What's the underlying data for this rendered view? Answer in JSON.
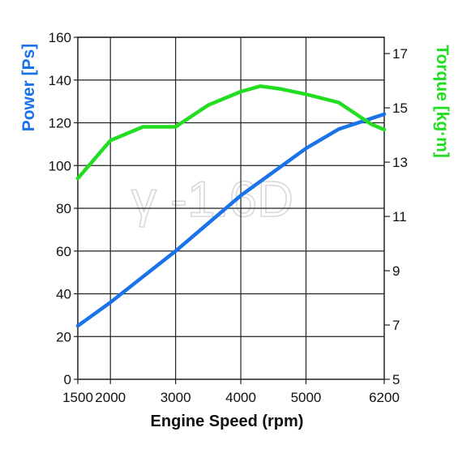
{
  "chart_data": {
    "type": "line",
    "title": "",
    "watermark": "γ -1.6D",
    "xlabel": "Engine Speed (rpm)",
    "xlim": [
      1500,
      6200
    ],
    "x_ticks": [
      1500,
      2000,
      3000,
      4000,
      5000,
      6200
    ],
    "x_grid": [
      2000,
      3000,
      4000,
      5000
    ],
    "grid": true,
    "legend": "none",
    "y_left": {
      "label_text": "Power",
      "label_unit": "[Ps]",
      "ylim": [
        0,
        160
      ],
      "ticks": [
        0,
        20,
        40,
        60,
        80,
        100,
        120,
        140,
        160
      ],
      "color": "#1a73e8"
    },
    "y_right": {
      "label_text": "Torque",
      "label_unit": "[kg·m]",
      "ylim": [
        5,
        17.6
      ],
      "ticks": [
        5,
        7,
        9,
        11,
        13,
        15,
        17
      ],
      "color": "#22dd22"
    },
    "series": [
      {
        "axis": "left",
        "color": "#1a73e8",
        "x": [
          1500,
          2000,
          2500,
          3000,
          3500,
          4000,
          4500,
          5000,
          5500,
          6000,
          6200
        ],
        "values": [
          25,
          36,
          48,
          60,
          73,
          86,
          97,
          108,
          117,
          122,
          124
        ]
      },
      {
        "axis": "right",
        "color": "#22dd22",
        "x": [
          1500,
          2000,
          2500,
          3000,
          3500,
          4000,
          4300,
          4600,
          5000,
          5500,
          6000,
          6200
        ],
        "values": [
          12.4,
          13.8,
          14.3,
          14.3,
          15.1,
          15.6,
          15.8,
          15.7,
          15.5,
          15.2,
          14.4,
          14.2
        ]
      }
    ]
  }
}
